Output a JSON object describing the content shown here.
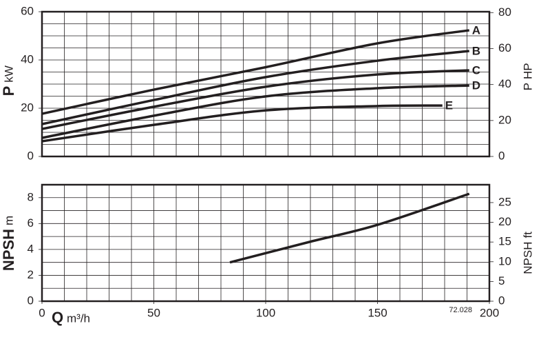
{
  "chart_data": [
    {
      "type": "line",
      "ylabel": "P",
      "yunit": "kW",
      "y2label": "P",
      "y2unit": "HP",
      "xlim": [
        0,
        200
      ],
      "ylim": [
        0,
        60
      ],
      "yticks": [
        0,
        20,
        40,
        60
      ],
      "y2lim": [
        0,
        80.5
      ],
      "y2ticks": [
        0,
        20,
        40,
        60,
        80
      ],
      "grid": true,
      "grid_x_step": 10,
      "grid_y_step": 5,
      "series": [
        {
          "name": "A",
          "color": "#231f20",
          "x": [
            0,
            50,
            100,
            150,
            191
          ],
          "values": [
            17.7,
            27.7,
            37,
            46.9,
            52.3
          ]
        },
        {
          "name": "B",
          "color": "#231f20",
          "x": [
            0,
            50,
            100,
            150,
            191
          ],
          "values": [
            13.4,
            23.4,
            32.9,
            39.7,
            43.7
          ]
        },
        {
          "name": "C",
          "color": "#231f20",
          "x": [
            0,
            50,
            100,
            150,
            191
          ],
          "values": [
            11.4,
            20.6,
            28.9,
            34,
            35.7
          ]
        },
        {
          "name": "D",
          "color": "#231f20",
          "x": [
            0,
            50,
            100,
            150,
            191
          ],
          "values": [
            7.7,
            16.9,
            24.9,
            28.3,
            29.4
          ]
        },
        {
          "name": "E",
          "color": "#231f20",
          "x": [
            0,
            50,
            100,
            150,
            179
          ],
          "values": [
            6.3,
            13.1,
            19.1,
            20.9,
            21.1
          ]
        }
      ]
    },
    {
      "type": "line",
      "ylabel": "NPSH",
      "yunit": "m",
      "y2label": "NPSH",
      "y2unit": "ft",
      "xlabel": "Q",
      "xunit": "m³/h",
      "xlim": [
        0,
        200
      ],
      "xticks": [
        0,
        50,
        100,
        150,
        200
      ],
      "ylim": [
        0,
        9
      ],
      "yticks": [
        0,
        2,
        4,
        6,
        8
      ],
      "y2lim": [
        0,
        29.53
      ],
      "y2ticks": [
        0,
        5,
        10,
        15,
        20,
        25
      ],
      "grid": true,
      "grid_x_step": 10,
      "grid_y_step": 1,
      "annotation": "72.028",
      "series": [
        {
          "color": "#231f20",
          "x": [
            84,
            120,
            150,
            191
          ],
          "values": [
            3.0,
            4.6,
            5.9,
            8.3
          ]
        }
      ]
    }
  ]
}
